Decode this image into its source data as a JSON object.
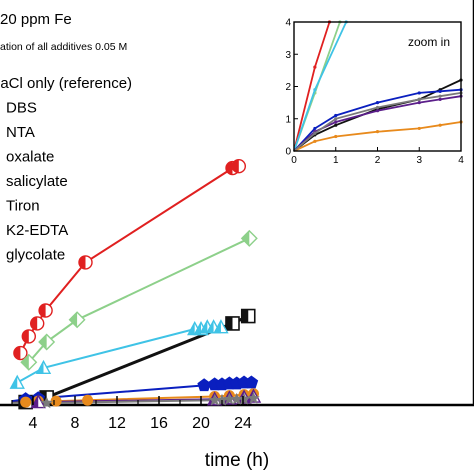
{
  "chart_data": {
    "type": "line",
    "header": "20 ppm Fe",
    "note": "ation of all additives 0.05 M",
    "xlabel": "time (h)",
    "ylabel": "",
    "xlim": [
      2,
      25
    ],
    "xticks": [
      4,
      8,
      12,
      16,
      20,
      24
    ],
    "ylim": [
      0,
      15
    ],
    "legend_position": "top-left",
    "grid": false,
    "series": [
      {
        "name": "laCl only (reference)",
        "color": "#111111",
        "marker": "square",
        "x": [
          2,
          3.3,
          5.3,
          23.0,
          24.5
        ],
        "y": [
          0.0,
          0.05,
          0.3,
          4.3,
          4.7
        ]
      },
      {
        "name": "DBS",
        "color": "#0a1fbf",
        "marker": "pentagon",
        "x": [
          2,
          3.3,
          4.5,
          20.3,
          21.3,
          22.0,
          22.7,
          23.4,
          24.1,
          24.8
        ],
        "y": [
          0.1,
          0.2,
          0.25,
          0.95,
          1.0,
          1.0,
          1.05,
          1.05,
          1.1,
          1.1
        ]
      },
      {
        "name": "NTA",
        "color": "#e88a1c",
        "marker": "circle",
        "x": [
          2,
          3.3,
          4.5,
          6.2,
          9.2,
          21.3,
          22.7,
          24.1,
          25.0
        ],
        "y": [
          0.0,
          0.05,
          0.1,
          0.1,
          0.15,
          0.35,
          0.4,
          0.45,
          0.5
        ]
      },
      {
        "name": "oxalate",
        "color": "#e02020",
        "marker": "half-circle",
        "x": [
          2.8,
          3.6,
          4.4,
          5.2,
          9.0,
          23.0,
          23.6
        ],
        "y": [
          2.7,
          3.6,
          4.3,
          5.0,
          7.6,
          12.7,
          12.8
        ]
      },
      {
        "name": "salicylate",
        "color": "#8dd08a",
        "marker": "half-diamond",
        "x": [
          3.6,
          5.3,
          8.2,
          24.6
        ],
        "y": [
          2.2,
          3.3,
          4.5,
          8.9
        ]
      },
      {
        "name": "Tiron",
        "color": "#3fc3e6",
        "marker": "triangle",
        "x": [
          2.5,
          5.0,
          19.4,
          20.0,
          20.6,
          21.2,
          21.9
        ],
        "y": [
          1.1,
          1.9,
          4.0,
          4.0,
          4.1,
          4.1,
          4.1
        ]
      },
      {
        "name": "K2-EDTA",
        "color": "#5b1e8a",
        "marker": "triangle",
        "x": [
          2,
          4.5,
          21.3,
          22.7,
          24.1,
          25.0
        ],
        "y": [
          0.0,
          0.05,
          0.2,
          0.25,
          0.3,
          0.35
        ]
      },
      {
        "name": "glycolate",
        "color": "#7a7a7a",
        "marker": "star",
        "x": [
          2,
          5.3,
          21.3,
          22.0,
          22.7,
          23.4,
          24.1,
          25.0
        ],
        "y": [
          0.0,
          0.0,
          0.15,
          0.15,
          0.2,
          0.2,
          0.2,
          0.25
        ]
      }
    ],
    "inset": {
      "title": "zoom in",
      "xlim": [
        0,
        4
      ],
      "ylim": [
        0,
        4
      ],
      "xticks": [
        0,
        1,
        2,
        3,
        4
      ],
      "yticks": [
        0,
        1,
        2,
        3,
        4
      ],
      "series": [
        {
          "name": "oxalate",
          "color": "#e02020",
          "x": [
            0,
            0.5,
            0.85
          ],
          "y": [
            0,
            2.6,
            4.0
          ]
        },
        {
          "name": "salicylate",
          "color": "#8dd08a",
          "x": [
            0,
            0.5,
            1.1
          ],
          "y": [
            0,
            1.8,
            4.0
          ]
        },
        {
          "name": "Tiron",
          "color": "#3fc3e6",
          "x": [
            0,
            0.5,
            1.25
          ],
          "y": [
            0,
            1.9,
            4.0
          ]
        },
        {
          "name": "laCl only (reference)",
          "color": "#111111",
          "x": [
            0,
            0.5,
            1.0,
            2.0,
            3.0,
            3.5,
            4.0
          ],
          "y": [
            0,
            0.5,
            0.8,
            1.3,
            1.6,
            1.9,
            2.2
          ]
        },
        {
          "name": "DBS",
          "color": "#0a1fbf",
          "x": [
            0,
            0.5,
            1.0,
            2.0,
            3.0,
            3.5,
            4.0
          ],
          "y": [
            0,
            0.7,
            1.1,
            1.5,
            1.8,
            1.85,
            1.9
          ]
        },
        {
          "name": "K2-EDTA",
          "color": "#5b1e8a",
          "x": [
            0,
            0.5,
            1.0,
            2.0,
            3.0,
            3.5,
            4.0
          ],
          "y": [
            0,
            0.6,
            0.9,
            1.25,
            1.5,
            1.6,
            1.7
          ]
        },
        {
          "name": "NTA",
          "color": "#e88a1c",
          "x": [
            0,
            0.5,
            1.0,
            2.0,
            3.0,
            3.5,
            4.0
          ],
          "y": [
            0,
            0.3,
            0.45,
            0.6,
            0.7,
            0.8,
            0.9
          ]
        },
        {
          "name": "glycolate",
          "color": "#7a7a7a",
          "x": [
            0,
            0.5,
            1.0,
            2.0,
            3.0,
            3.5,
            4.0
          ],
          "y": [
            0,
            0.55,
            1.0,
            1.35,
            1.6,
            1.7,
            1.8
          ]
        }
      ]
    }
  }
}
